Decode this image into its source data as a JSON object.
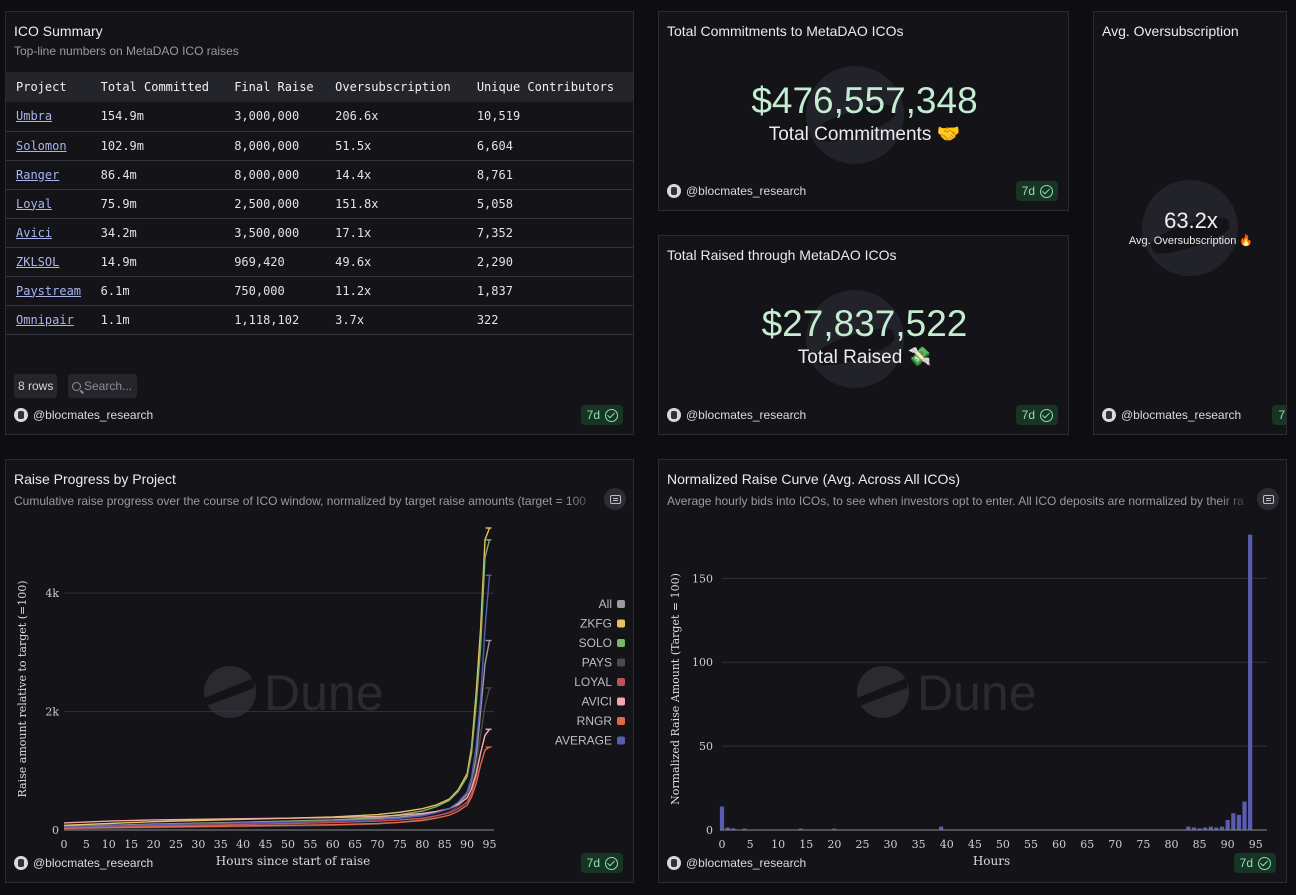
{
  "summary": {
    "title": "ICO Summary",
    "subtitle": "Top-line numbers on MetaDAO ICO raises",
    "columns": [
      "Project",
      "Total Committed",
      "Final Raise",
      "Oversubscription",
      "Unique Contributors"
    ],
    "rows": [
      [
        "Umbra",
        "154.9m",
        "3,000,000",
        "206.6x",
        "10,519"
      ],
      [
        "Solomon",
        "102.9m",
        "8,000,000",
        "51.5x",
        "6,604"
      ],
      [
        "Ranger",
        "86.4m",
        "8,000,000",
        "14.4x",
        "8,761"
      ],
      [
        "Loyal",
        "75.9m",
        "2,500,000",
        "151.8x",
        "5,058"
      ],
      [
        "Avici",
        "34.2m",
        "3,500,000",
        "17.1x",
        "7,352"
      ],
      [
        "ZKLSOL",
        "14.9m",
        "969,420",
        "49.6x",
        "2,290"
      ],
      [
        "Paystream",
        "6.1m",
        "750,000",
        "11.2x",
        "1,837"
      ],
      [
        "Omnipair",
        "1.1m",
        "1,118,102",
        "3.7x",
        "322"
      ]
    ],
    "rows_label": "8 rows",
    "search_placeholder": "Search...",
    "author": "@blocmates_research",
    "badge": "7d"
  },
  "commitments": {
    "title": "Total Commitments to MetaDAO ICOs",
    "value": "$476,557,348",
    "label": "Total Commitments 🤝",
    "author": "@blocmates_research",
    "badge": "7d"
  },
  "raised": {
    "title": "Total Raised through MetaDAO ICOs",
    "value": "$27,837,522",
    "label": "Total Raised 💸",
    "author": "@blocmates_research",
    "badge": "7d"
  },
  "oversub": {
    "title": "Avg. Oversubscription",
    "value": "63.2x",
    "label": "Avg. Oversubscription 🔥",
    "author": "@blocmates_research",
    "badge": "7"
  },
  "progress": {
    "title": "Raise Progress by Project",
    "subtitle": "Cumulative raise progress over the course of ICO window, normalized by target raise amounts (target = 100",
    "watermark": "Dune",
    "author": "@blocmates_research",
    "badge": "7d"
  },
  "curve": {
    "title": "Normalized Raise Curve (Avg. Across All ICOs)",
    "subtitle": "Average hourly bids into ICOs, to see when investors opt to enter. All ICO deposits are normalized by their ra",
    "watermark": "Dune",
    "author": "@blocmates_research",
    "badge": "7d"
  },
  "colors": {
    "All": "#9a9aa6",
    "ZKFG": "#e8c25a",
    "SOLO": "#7fb36a",
    "PAYS": "#4a4a52",
    "LOYAL": "#c2505a",
    "AVICI": "#f0a8a8",
    "RNGR": "#e06a48",
    "AVERAGE": "#5a5cb0"
  },
  "chart_data": [
    {
      "type": "line",
      "xlabel": "Hours since start of raise",
      "ylabel": "Raise amount relative to target (=100)",
      "x_ticks": [
        0,
        5,
        10,
        15,
        20,
        25,
        30,
        35,
        40,
        45,
        50,
        55,
        60,
        65,
        70,
        75,
        80,
        85,
        90,
        95
      ],
      "y_ticks": [
        0,
        2000,
        4000
      ],
      "y_tick_labels": [
        "0",
        "2k",
        "4k"
      ],
      "xlim": [
        0,
        96
      ],
      "ylim": [
        0,
        5100
      ],
      "legend_position": "right",
      "x": [
        0,
        10,
        20,
        30,
        40,
        50,
        60,
        70,
        75,
        80,
        83,
        86,
        88,
        90,
        91,
        92,
        93,
        94,
        95
      ],
      "series": [
        {
          "name": "All",
          "values": [
            60,
            80,
            100,
            115,
            130,
            145,
            160,
            190,
            220,
            260,
            300,
            360,
            450,
            600,
            800,
            1200,
            2000,
            2800,
            3200
          ]
        },
        {
          "name": "ZKFG",
          "values": [
            80,
            110,
            140,
            160,
            180,
            200,
            220,
            260,
            300,
            360,
            420,
            520,
            680,
            950,
            1400,
            2300,
            3400,
            4900,
            5100
          ]
        },
        {
          "name": "SOLO",
          "values": [
            40,
            70,
            90,
            110,
            130,
            150,
            170,
            210,
            260,
            320,
            390,
            500,
            650,
            900,
            1300,
            2100,
            3100,
            4600,
            4900
          ]
        },
        {
          "name": "PAYS",
          "values": [
            20,
            30,
            40,
            50,
            60,
            70,
            80,
            100,
            130,
            180,
            230,
            300,
            400,
            560,
            760,
            1100,
            1600,
            2100,
            2400
          ]
        },
        {
          "name": "LOYAL",
          "values": [
            30,
            50,
            70,
            80,
            95,
            110,
            125,
            150,
            170,
            200,
            240,
            290,
            360,
            470,
            620,
            900,
            1300,
            1600,
            1700
          ]
        },
        {
          "name": "AVICI",
          "values": [
            120,
            150,
            170,
            180,
            190,
            200,
            210,
            230,
            250,
            280,
            310,
            360,
            430,
            540,
            700,
            950,
            1300,
            1600,
            1700
          ]
        },
        {
          "name": "RNGR",
          "values": [
            30,
            40,
            50,
            60,
            70,
            80,
            90,
            110,
            130,
            160,
            200,
            250,
            320,
            420,
            560,
            780,
            1100,
            1350,
            1400
          ]
        },
        {
          "name": "AVERAGE",
          "values": [
            50,
            70,
            90,
            105,
            120,
            135,
            150,
            175,
            200,
            240,
            290,
            360,
            470,
            640,
            900,
            1400,
            2200,
            3400,
            4300
          ]
        }
      ]
    },
    {
      "type": "bar",
      "xlabel": "Hours",
      "ylabel": "Normalized Raise Amount (Target = 100)",
      "x_ticks": [
        0,
        5,
        10,
        15,
        20,
        25,
        30,
        35,
        40,
        45,
        50,
        55,
        60,
        65,
        70,
        75,
        80,
        85,
        90,
        95
      ],
      "y_ticks": [
        0,
        50,
        100,
        150
      ],
      "xlim": [
        0,
        97
      ],
      "ylim": [
        0,
        180
      ],
      "x": [
        0,
        1,
        2,
        4,
        14,
        20,
        39,
        83,
        84,
        85,
        86,
        87,
        88,
        89,
        90,
        91,
        92,
        93,
        94
      ],
      "values": [
        14,
        1.5,
        1,
        0.8,
        0.8,
        0.8,
        2,
        2,
        1.5,
        1,
        1.5,
        2,
        1.5,
        2,
        6,
        10,
        9,
        17,
        176
      ]
    }
  ]
}
